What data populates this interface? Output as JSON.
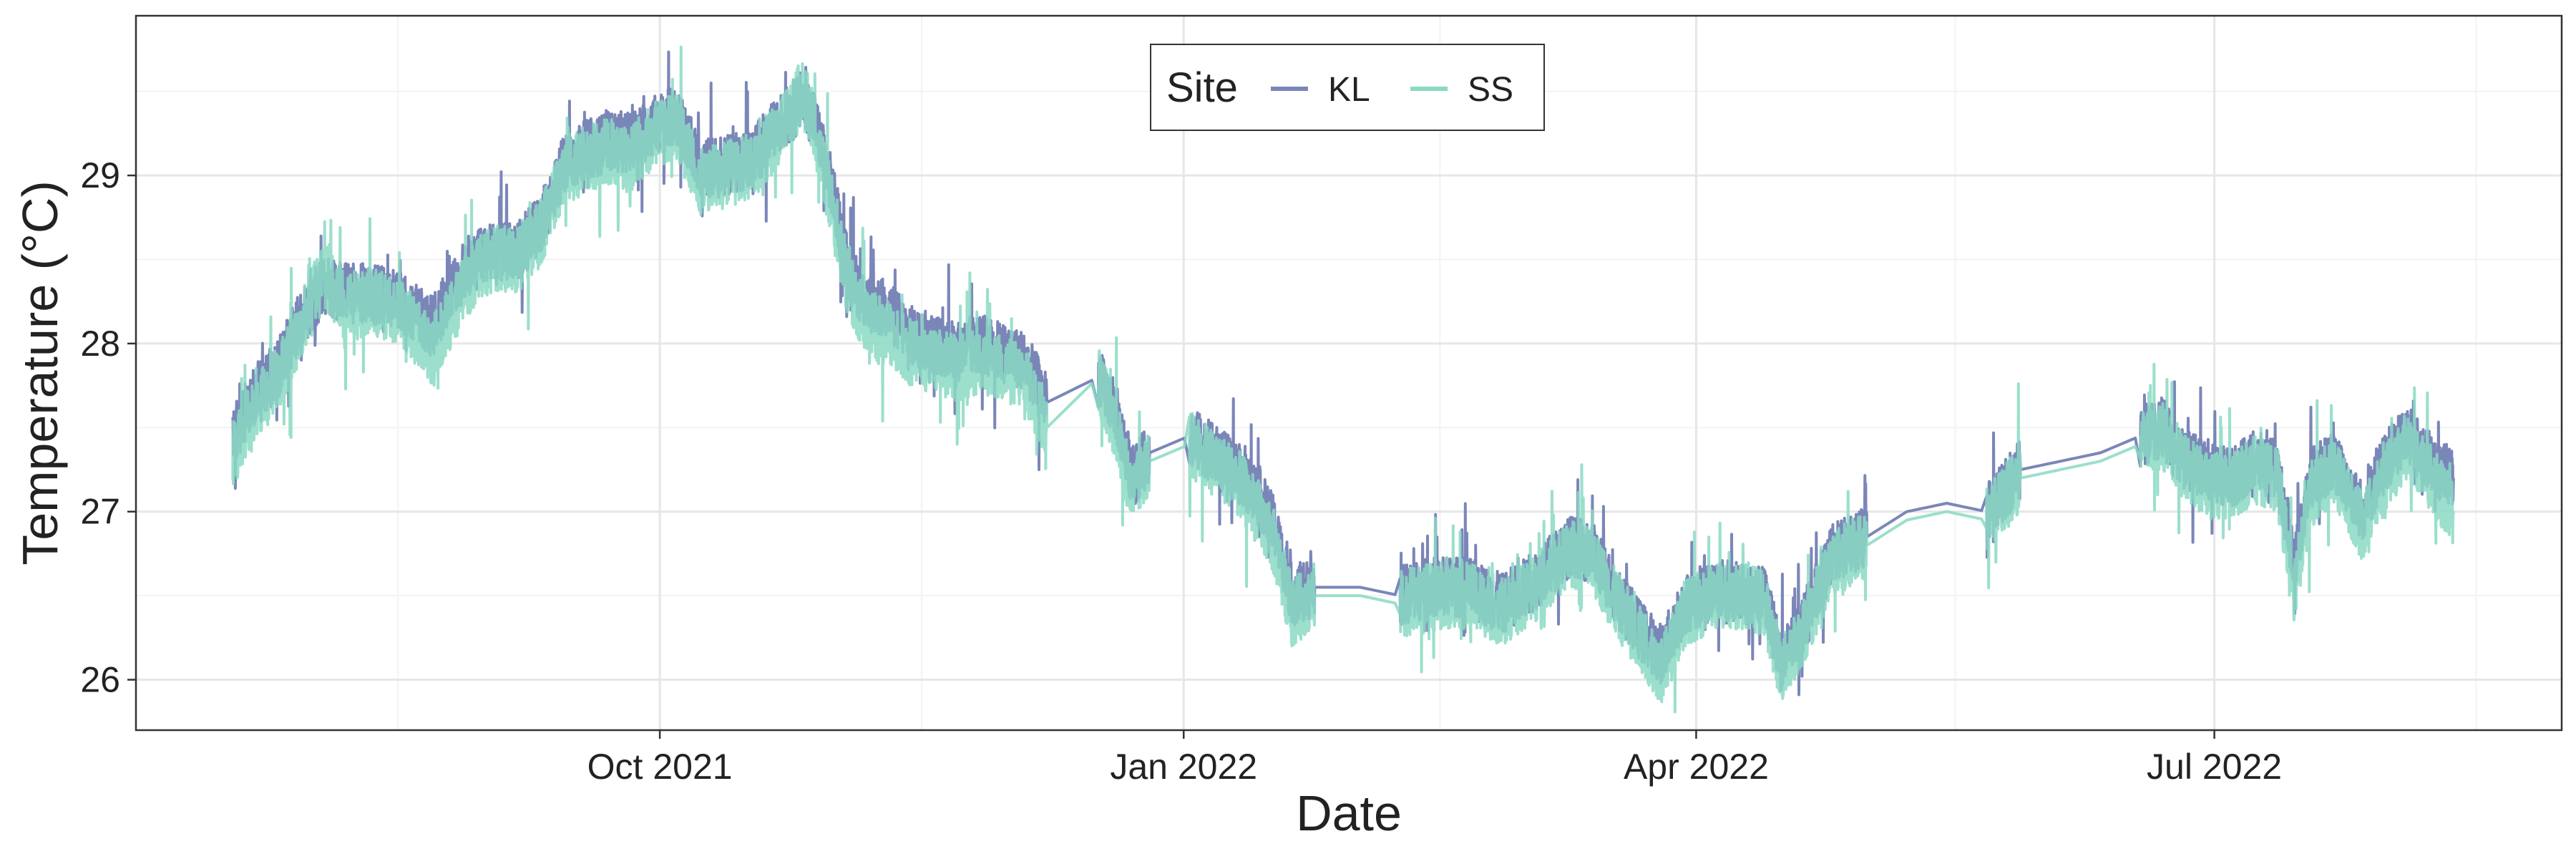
{
  "chart_data": {
    "type": "line",
    "title": "",
    "xlabel": "Date",
    "ylabel": "Temperature (°C)",
    "x_range": [
      "2021-07-01",
      "2022-08-31"
    ],
    "ylim": [
      25.7,
      29.95
    ],
    "x_ticks": [
      {
        "date": "2021-10-01",
        "label": "Oct 2021"
      },
      {
        "date": "2022-01-01",
        "label": "Jan 2022"
      },
      {
        "date": "2022-04-01",
        "label": "Apr 2022"
      },
      {
        "date": "2022-07-01",
        "label": "Jul 2022"
      }
    ],
    "y_ticks": [
      26,
      27,
      28,
      29
    ],
    "grid": true,
    "legend": {
      "title": "Site",
      "placement": "top-center"
    },
    "series": [
      {
        "name": "KL",
        "color": "#7b86b8",
        "noise": 0.18,
        "points": [
          [
            "2021-07-18",
            27.45
          ],
          [
            "2021-07-22",
            27.7
          ],
          [
            "2021-07-26",
            27.85
          ],
          [
            "2021-07-30",
            28.15
          ],
          [
            "2021-08-03",
            28.35
          ],
          [
            "2021-08-07",
            28.3
          ],
          [
            "2021-08-11",
            28.3
          ],
          [
            "2021-08-16",
            28.25
          ],
          [
            "2021-08-22",
            28.1
          ],
          [
            "2021-08-28",
            28.45
          ],
          [
            "2021-09-01",
            28.55
          ],
          [
            "2021-09-06",
            28.55
          ],
          [
            "2021-09-10",
            28.7
          ],
          [
            "2021-09-14",
            29.05
          ],
          [
            "2021-09-18",
            29.15
          ],
          [
            "2021-09-22",
            29.2
          ],
          [
            "2021-09-26",
            29.2
          ],
          [
            "2021-09-30",
            29.3
          ],
          [
            "2021-10-04",
            29.35
          ],
          [
            "2021-10-08",
            29.05
          ],
          [
            "2021-10-12",
            29.05
          ],
          [
            "2021-10-17",
            29.1
          ],
          [
            "2021-10-22",
            29.3
          ],
          [
            "2021-10-26",
            29.45
          ],
          [
            "2021-10-28",
            29.35
          ],
          [
            "2021-10-31",
            28.95
          ],
          [
            "2021-11-03",
            28.45
          ],
          [
            "2021-11-06",
            28.25
          ],
          [
            "2021-11-10",
            28.2
          ],
          [
            "2021-11-14",
            28.05
          ],
          [
            "2021-11-18",
            28.0
          ],
          [
            "2021-11-22",
            27.95
          ],
          [
            "2021-11-26",
            28.0
          ],
          [
            "2021-11-30",
            27.95
          ],
          [
            "2021-12-04",
            27.9
          ],
          [
            "2021-12-08",
            27.65
          ],
          [
            "2021-12-17",
            27.8
          ],
          [
            "2021-12-20",
            27.6
          ],
          [
            "2021-12-23",
            27.2
          ],
          [
            "2021-12-26",
            27.35
          ],
          [
            "2022-01-02",
            27.45
          ],
          [
            "2022-01-06",
            27.35
          ],
          [
            "2022-01-10",
            27.25
          ],
          [
            "2022-01-14",
            27.1
          ],
          [
            "2022-01-17",
            26.9
          ],
          [
            "2022-01-20",
            26.5
          ],
          [
            "2022-01-24",
            26.55
          ],
          [
            "2022-02-01",
            26.55
          ],
          [
            "2022-02-08",
            26.5
          ],
          [
            "2022-02-14",
            26.55
          ],
          [
            "2022-02-20",
            26.55
          ],
          [
            "2022-02-26",
            26.45
          ],
          [
            "2022-03-04",
            26.6
          ],
          [
            "2022-03-10",
            26.8
          ],
          [
            "2022-03-14",
            26.75
          ],
          [
            "2022-03-18",
            26.5
          ],
          [
            "2022-03-22",
            26.3
          ],
          [
            "2022-03-26",
            26.15
          ],
          [
            "2022-03-30",
            26.45
          ],
          [
            "2022-04-05",
            26.55
          ],
          [
            "2022-04-10",
            26.5
          ],
          [
            "2022-04-13",
            26.5
          ],
          [
            "2022-04-16",
            26.1
          ],
          [
            "2022-04-20",
            26.35
          ],
          [
            "2022-04-25",
            26.75
          ],
          [
            "2022-05-01",
            26.85
          ],
          [
            "2022-05-08",
            27.0
          ],
          [
            "2022-05-15",
            27.05
          ],
          [
            "2022-05-22",
            27.0
          ],
          [
            "2022-05-28",
            27.25
          ],
          [
            "2022-06-04",
            27.3
          ],
          [
            "2022-06-11",
            27.35
          ],
          [
            "2022-06-18",
            27.45
          ],
          [
            "2022-06-22",
            27.5
          ],
          [
            "2022-06-26",
            27.3
          ],
          [
            "2022-06-30",
            27.25
          ],
          [
            "2022-07-04",
            27.2
          ],
          [
            "2022-07-08",
            27.3
          ],
          [
            "2022-07-12",
            27.25
          ],
          [
            "2022-07-15",
            26.7
          ],
          [
            "2022-07-18",
            27.2
          ],
          [
            "2022-07-22",
            27.3
          ],
          [
            "2022-07-27",
            27.0
          ],
          [
            "2022-07-31",
            27.3
          ],
          [
            "2022-08-04",
            27.45
          ],
          [
            "2022-08-09",
            27.25
          ],
          [
            "2022-08-12",
            27.2
          ]
        ]
      },
      {
        "name": "SS",
        "color": "#8ad9c3",
        "noise": 0.2,
        "points": [
          [
            "2021-07-18",
            27.35
          ],
          [
            "2021-07-22",
            27.6
          ],
          [
            "2021-07-26",
            27.8
          ],
          [
            "2021-07-30",
            28.1
          ],
          [
            "2021-08-03",
            28.4
          ],
          [
            "2021-08-07",
            28.2
          ],
          [
            "2021-08-11",
            28.25
          ],
          [
            "2021-08-16",
            28.2
          ],
          [
            "2021-08-22",
            27.95
          ],
          [
            "2021-08-28",
            28.35
          ],
          [
            "2021-09-01",
            28.5
          ],
          [
            "2021-09-06",
            28.5
          ],
          [
            "2021-09-10",
            28.65
          ],
          [
            "2021-09-14",
            29.0
          ],
          [
            "2021-09-18",
            29.1
          ],
          [
            "2021-09-22",
            29.15
          ],
          [
            "2021-09-26",
            29.1
          ],
          [
            "2021-09-30",
            29.25
          ],
          [
            "2021-10-04",
            29.3
          ],
          [
            "2021-10-08",
            28.95
          ],
          [
            "2021-10-12",
            29.0
          ],
          [
            "2021-10-17",
            29.05
          ],
          [
            "2021-10-22",
            29.25
          ],
          [
            "2021-10-26",
            29.5
          ],
          [
            "2021-10-28",
            29.3
          ],
          [
            "2021-10-31",
            28.85
          ],
          [
            "2021-11-03",
            28.35
          ],
          [
            "2021-11-06",
            28.15
          ],
          [
            "2021-11-10",
            28.05
          ],
          [
            "2021-11-14",
            27.95
          ],
          [
            "2021-11-18",
            27.9
          ],
          [
            "2021-11-22",
            27.85
          ],
          [
            "2021-11-26",
            27.9
          ],
          [
            "2021-11-30",
            27.85
          ],
          [
            "2021-12-04",
            27.8
          ],
          [
            "2021-12-08",
            27.5
          ],
          [
            "2021-12-17",
            27.8
          ],
          [
            "2021-12-20",
            27.5
          ],
          [
            "2021-12-23",
            27.1
          ],
          [
            "2021-12-26",
            27.3
          ],
          [
            "2022-01-02",
            27.4
          ],
          [
            "2022-01-06",
            27.3
          ],
          [
            "2022-01-10",
            27.2
          ],
          [
            "2022-01-14",
            27.0
          ],
          [
            "2022-01-17",
            26.8
          ],
          [
            "2022-01-20",
            26.4
          ],
          [
            "2022-01-24",
            26.5
          ],
          [
            "2022-02-01",
            26.5
          ],
          [
            "2022-02-08",
            26.45
          ],
          [
            "2022-02-14",
            26.5
          ],
          [
            "2022-02-20",
            26.5
          ],
          [
            "2022-02-26",
            26.4
          ],
          [
            "2022-03-04",
            26.55
          ],
          [
            "2022-03-10",
            26.75
          ],
          [
            "2022-03-14",
            26.7
          ],
          [
            "2022-03-18",
            26.45
          ],
          [
            "2022-03-22",
            26.25
          ],
          [
            "2022-03-26",
            26.05
          ],
          [
            "2022-03-30",
            26.4
          ],
          [
            "2022-04-05",
            26.5
          ],
          [
            "2022-04-10",
            26.5
          ],
          [
            "2022-04-13",
            26.45
          ],
          [
            "2022-04-16",
            26.05
          ],
          [
            "2022-04-20",
            26.3
          ],
          [
            "2022-04-25",
            26.7
          ],
          [
            "2022-05-01",
            26.8
          ],
          [
            "2022-05-08",
            26.95
          ],
          [
            "2022-05-15",
            27.0
          ],
          [
            "2022-05-22",
            26.95
          ],
          [
            "2022-05-28",
            27.2
          ],
          [
            "2022-06-04",
            27.25
          ],
          [
            "2022-06-11",
            27.3
          ],
          [
            "2022-06-18",
            27.4
          ],
          [
            "2022-06-22",
            27.45
          ],
          [
            "2022-06-26",
            27.25
          ],
          [
            "2022-06-30",
            27.15
          ],
          [
            "2022-07-04",
            27.15
          ],
          [
            "2022-07-08",
            27.25
          ],
          [
            "2022-07-12",
            27.2
          ],
          [
            "2022-07-15",
            26.55
          ],
          [
            "2022-07-18",
            27.1
          ],
          [
            "2022-07-22",
            27.25
          ],
          [
            "2022-07-27",
            26.9
          ],
          [
            "2022-07-31",
            27.2
          ],
          [
            "2022-08-04",
            27.4
          ],
          [
            "2022-08-09",
            27.15
          ],
          [
            "2022-08-12",
            27.0
          ]
        ]
      }
    ]
  }
}
